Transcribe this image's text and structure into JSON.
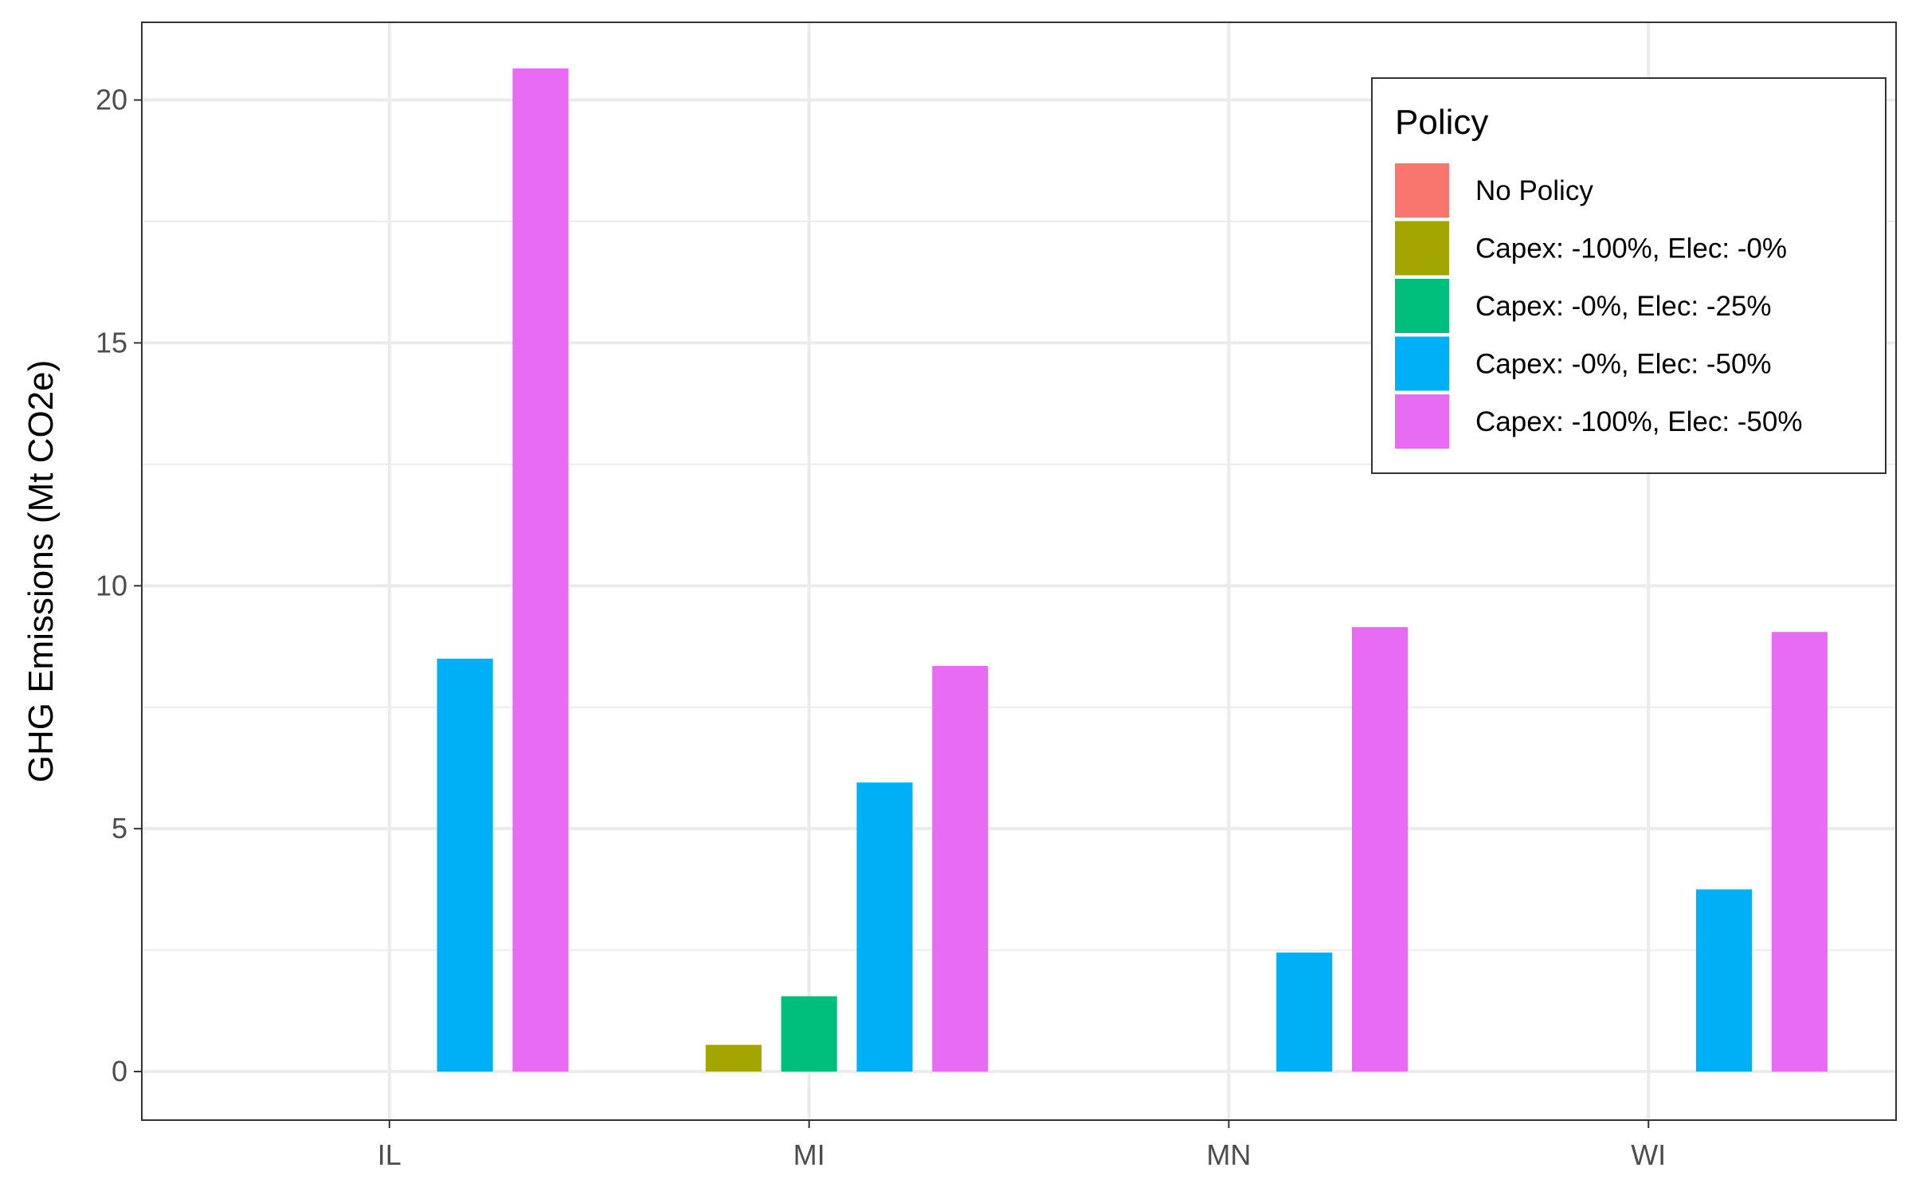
{
  "chart_data": {
    "type": "bar",
    "title": "",
    "xlabel": "",
    "ylabel": "GHG Emissions (Mt CO2e)",
    "categories": [
      "IL",
      "MI",
      "MN",
      "WI"
    ],
    "series": [
      {
        "name": "No Policy",
        "color": "#F8766D",
        "values": [
          0,
          0,
          0,
          0
        ]
      },
      {
        "name": "Capex: -100%, Elec: -0%",
        "color": "#A3A500",
        "values": [
          0,
          0.55,
          0,
          0
        ]
      },
      {
        "name": "Capex: -0%, Elec: -25%",
        "color": "#00BF7D",
        "values": [
          0,
          1.55,
          0,
          0
        ]
      },
      {
        "name": "Capex: -0%, Elec: -50%",
        "color": "#00B0F6",
        "values": [
          8.5,
          5.95,
          2.45,
          3.75
        ]
      },
      {
        "name": "Capex: -100%, Elec: -50%",
        "color": "#E76BF3",
        "values": [
          20.65,
          8.35,
          9.15,
          9.05
        ]
      }
    ],
    "yticks": [
      "0",
      "5",
      "10",
      "15",
      "20"
    ],
    "ylim": [
      -1,
      21.6
    ],
    "grid": true,
    "legend": {
      "title": "Policy",
      "position": "top-right (inside)"
    }
  }
}
